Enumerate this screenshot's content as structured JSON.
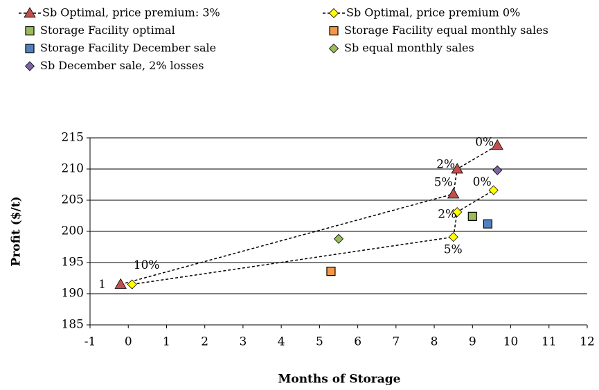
{
  "chart_data": {
    "type": "scatter",
    "xlabel": "Months of Storage",
    "ylabel": "Profit ($/t)",
    "xlim": [
      -1,
      12
    ],
    "xticks": [
      -1,
      0,
      1,
      2,
      3,
      4,
      5,
      6,
      7,
      8,
      9,
      10,
      11,
      12
    ],
    "ylim": [
      185,
      215
    ],
    "yticks": [
      185,
      190,
      195,
      200,
      205,
      210,
      215
    ],
    "grid": true,
    "series": [
      {
        "name": "Sb Optimal, price premium: 3%",
        "color": "#c0504d",
        "marker": "triangle",
        "line": "dashed",
        "x": [
          -0.2,
          8.5,
          8.6,
          9.65
        ],
        "y": [
          191.5,
          206,
          210,
          213.8
        ],
        "point_labels": [
          "1",
          "5%",
          "2%",
          "0%"
        ]
      },
      {
        "name": "Sb Optimal, price premium 0%",
        "color": "#ffff00",
        "marker": "diamond",
        "line": "dashed",
        "x": [
          0.1,
          8.5,
          8.6,
          9.55
        ],
        "y": [
          191.5,
          199.1,
          203.1,
          206.6
        ],
        "point_labels": [
          "10%",
          "5%",
          "2%",
          "0%"
        ]
      },
      {
        "name": "Storage Facility optimal",
        "color": "#9bbb59",
        "marker": "square",
        "x": [
          9.0
        ],
        "y": [
          202.4
        ]
      },
      {
        "name": "Storage Facility equal monthly sales",
        "color": "#f79646",
        "marker": "square",
        "x": [
          5.3
        ],
        "y": [
          193.6
        ]
      },
      {
        "name": "Storage Facility December sale",
        "color": "#4f81bd",
        "marker": "square",
        "x": [
          9.4
        ],
        "y": [
          201.2
        ]
      },
      {
        "name": "Sb equal monthly sales",
        "color": "#9bbb59",
        "marker": "diamond",
        "x": [
          5.5
        ],
        "y": [
          198.8
        ]
      },
      {
        "name": "Sb December sale, 2% losses",
        "color": "#8064a2",
        "marker": "diamond",
        "x": [
          9.65
        ],
        "y": [
          209.8
        ]
      }
    ]
  }
}
